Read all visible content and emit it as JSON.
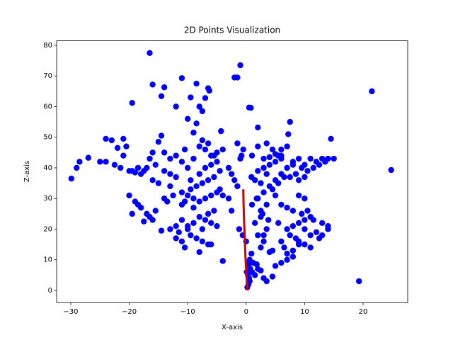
{
  "chart_data": {
    "type": "scatter",
    "title": "2D Points Visualization",
    "x_label": "X-axis",
    "y_label": "Z-axis",
    "xlim": [
      -32.42,
      27.63
    ],
    "ylim": [
      -3.98,
      81.48
    ],
    "xticks": [
      {
        "value": -30,
        "label": "−30"
      },
      {
        "value": -20,
        "label": "−20"
      },
      {
        "value": -10,
        "label": "−10"
      },
      0,
      10,
      20
    ],
    "yticks": [
      0,
      10,
      20,
      30,
      40,
      50,
      60,
      70,
      80
    ],
    "series": [
      {
        "kind": "scatter",
        "color": "#0000ff",
        "x": [
          -16.5,
          -1,
          -1.5,
          -2,
          21.5,
          24.8,
          19.3,
          -19.5,
          -29.9,
          -29,
          -28.5,
          -27,
          -16,
          -11,
          -8.5,
          -6.5,
          -6.3,
          -14,
          -14.5,
          -9.5,
          -7,
          -12,
          -8,
          -7.5,
          -10,
          0.5,
          0.8,
          2,
          7.5,
          7.2,
          -4.3,
          -14.5,
          -15,
          -24,
          -23,
          -21,
          -20.5,
          -22,
          -8.5,
          -9,
          -25,
          -24,
          -22.5,
          -21.5,
          -21,
          -20,
          -19,
          -18,
          -17,
          -16,
          -18.5,
          -17.5,
          -16.5,
          -15.5,
          -14,
          -13,
          -12,
          -15,
          -16,
          -19.5,
          -20,
          -19,
          -18,
          -17,
          -16,
          -17.5,
          -16.5,
          -15.5,
          -19.5,
          -18.5,
          -14.5,
          -13,
          -12,
          -11.5,
          -14,
          -13.5,
          -12.5,
          -11,
          -10,
          -13,
          -11,
          -10,
          -9,
          -8,
          -7,
          -6,
          -5,
          -4.5,
          -10.5,
          -9.5,
          -8.5,
          -7.5,
          -6.5,
          -5.5,
          -8,
          -7,
          -6,
          -5,
          -9,
          -4,
          -8,
          -7,
          -6,
          -5,
          -9,
          -10,
          -11,
          -7.5,
          -6.5,
          -5.5,
          -9.5,
          -8.5,
          -7.5,
          -6.5,
          -10.5,
          -12,
          -11,
          -8,
          -6,
          -4,
          -7,
          -6,
          -5,
          -4,
          -8,
          -7.5,
          -6.5,
          -5.5,
          -9,
          -4.5,
          -11,
          -10,
          -12,
          -13,
          -10.5,
          -9.5,
          -14,
          -3,
          -2.5,
          -1.5,
          -1,
          -0.8,
          -0.5,
          -2,
          -1.5,
          -3,
          -2.5,
          -1.2,
          -0.6,
          0,
          0.2,
          0.4,
          0.6,
          0.5,
          0.3,
          0.1,
          0.7,
          0.4,
          0.5,
          0.6,
          1,
          1.5,
          2,
          2.5,
          3,
          3.5,
          4.5,
          1.2,
          1.8,
          0.9,
          2,
          3,
          4,
          5,
          6,
          2.5,
          3.5,
          4.5,
          5.5,
          6.5,
          2,
          3,
          4,
          5,
          1.5,
          2.5,
          3.5,
          7,
          8,
          6,
          1.5,
          2.5,
          3.5,
          2,
          3,
          1,
          1.8,
          2.8,
          3.8,
          4.5,
          8,
          9,
          10,
          11,
          12,
          13,
          14,
          15,
          9.5,
          10.5,
          11.5,
          12.5,
          13.5,
          8.5,
          7.5,
          6,
          5.5,
          14.5,
          9,
          10,
          7,
          8,
          9,
          10,
          11,
          12,
          13,
          14,
          7.5,
          8.5,
          9.5,
          10.5,
          11.5,
          9,
          10,
          11,
          8,
          7,
          6,
          12.5,
          5.5,
          6.5,
          4,
          5,
          6,
          7,
          8,
          9,
          10,
          11,
          3,
          4,
          5,
          6,
          7,
          2,
          1,
          3.5,
          4.5,
          0.9,
          6,
          7,
          8,
          9,
          10,
          3,
          2.5,
          5,
          13,
          14
        ],
        "values": [
          77.5,
          73.5,
          69.5,
          69.5,
          65,
          39.3,
          3,
          61.2,
          36.5,
          40,
          42,
          43.3,
          67.2,
          69.3,
          67.5,
          66,
          65.2,
          66.3,
          63.4,
          63,
          62.8,
          60,
          60,
          58.5,
          56,
          59.7,
          59.6,
          53.2,
          55,
          51,
          52,
          50.5,
          48.5,
          49.5,
          49,
          49.5,
          47,
          46.5,
          54.5,
          51.5,
          42,
          42,
          41,
          40,
          44,
          39,
          38.5,
          38,
          40,
          45,
          40,
          39,
          43,
          41,
          39,
          38,
          37,
          35,
          36,
          39,
          31,
          29,
          27,
          25,
          23,
          22.5,
          24,
          26,
          25,
          28,
          19.5,
          20,
          21,
          19,
          30,
          29,
          31,
          28,
          20,
          34,
          32,
          31,
          30,
          29,
          30,
          31,
          32,
          33,
          29,
          33,
          34,
          35,
          36,
          37,
          38,
          40,
          41,
          42,
          27,
          31,
          24,
          23,
          22,
          21,
          22,
          21,
          23,
          20,
          25,
          26,
          18,
          17,
          16,
          15,
          14,
          17,
          16,
          12.5,
          15,
          9.6,
          46,
          44,
          45,
          46,
          47,
          49,
          48,
          44,
          43,
          39,
          42,
          40,
          44,
          43,
          46,
          36,
          45,
          40,
          38,
          48,
          43,
          44,
          46,
          36,
          34,
          30,
          26,
          20,
          18,
          16,
          1,
          2,
          3,
          4,
          5,
          6,
          7,
          8,
          9,
          10,
          6,
          5,
          7,
          6.5,
          4,
          3,
          4.5,
          9,
          8.5,
          12,
          30,
          32,
          34,
          36,
          38,
          26,
          28,
          33,
          35,
          37,
          39,
          40,
          41,
          42,
          36,
          35,
          38,
          40,
          41,
          43,
          22,
          24,
          20,
          18,
          16,
          28,
          30,
          25,
          23,
          13,
          42,
          43,
          41,
          43,
          42,
          43,
          43,
          43,
          40,
          39,
          40,
          41,
          42,
          38,
          37,
          44,
          44,
          49.5,
          36,
          37,
          20,
          21,
          22,
          23,
          24,
          19,
          18,
          20,
          18,
          17,
          25,
          26,
          23,
          16,
          15,
          14,
          13,
          12,
          16,
          17,
          22,
          14,
          12.5,
          8,
          9,
          10,
          11,
          15,
          20,
          18,
          43,
          43.5,
          44.5,
          46,
          47,
          47,
          44,
          48,
          46,
          37,
          28,
          27,
          26,
          31,
          30,
          18,
          14,
          31,
          22,
          21
        ]
      },
      {
        "kind": "line",
        "color": "#cc0000",
        "x": [
          0.2,
          -0.1,
          -0.4,
          -0.5
        ],
        "values": [
          0,
          10,
          25,
          33
        ]
      }
    ]
  }
}
